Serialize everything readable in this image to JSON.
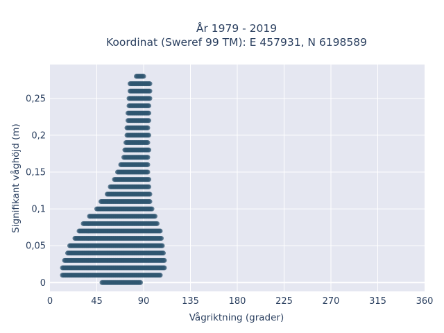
{
  "chart_data": {
    "type": "scatter",
    "title_line1": "År 1979 - 2019",
    "title_line2": "Koordinat (Sweref 99 TM): E 457931, N 6198589",
    "xlabel": "Vågriktning (grader)",
    "ylabel": "Signifikant våghöjd (m)",
    "xlim": [
      0,
      360
    ],
    "ylim": [
      -0.012,
      0.296
    ],
    "grid": true,
    "x_ticks": [
      0,
      45,
      90,
      135,
      180,
      225,
      270,
      315,
      360
    ],
    "x_tick_labels": [
      "0",
      "45",
      "90",
      "135",
      "180",
      "225",
      "270",
      "315",
      "360"
    ],
    "y_ticks": [
      0,
      0.05,
      0.1,
      0.15,
      0.2,
      0.25
    ],
    "y_tick_labels": [
      "0",
      "0,05",
      "0,1",
      "0,15",
      "0,2",
      "0,25"
    ],
    "marker_color": "#2f5670",
    "plot_bg": "#e5e7f1",
    "bands": [
      {
        "y": 0.0,
        "x_min": 50,
        "x_max": 87
      },
      {
        "y": 0.01,
        "x_min": 12,
        "x_max": 106
      },
      {
        "y": 0.02,
        "x_min": 12,
        "x_max": 110
      },
      {
        "y": 0.03,
        "x_min": 14,
        "x_max": 110
      },
      {
        "y": 0.04,
        "x_min": 17,
        "x_max": 109
      },
      {
        "y": 0.05,
        "x_min": 19,
        "x_max": 108
      },
      {
        "y": 0.06,
        "x_min": 24,
        "x_max": 107
      },
      {
        "y": 0.07,
        "x_min": 28,
        "x_max": 106
      },
      {
        "y": 0.08,
        "x_min": 32,
        "x_max": 103
      },
      {
        "y": 0.09,
        "x_min": 38,
        "x_max": 101
      },
      {
        "y": 0.1,
        "x_min": 45,
        "x_max": 98
      },
      {
        "y": 0.11,
        "x_min": 49,
        "x_max": 96
      },
      {
        "y": 0.12,
        "x_min": 55,
        "x_max": 96
      },
      {
        "y": 0.13,
        "x_min": 58,
        "x_max": 95
      },
      {
        "y": 0.14,
        "x_min": 62,
        "x_max": 95
      },
      {
        "y": 0.15,
        "x_min": 65,
        "x_max": 94
      },
      {
        "y": 0.16,
        "x_min": 68,
        "x_max": 94
      },
      {
        "y": 0.17,
        "x_min": 71,
        "x_max": 94
      },
      {
        "y": 0.18,
        "x_min": 72,
        "x_max": 95
      },
      {
        "y": 0.19,
        "x_min": 73,
        "x_max": 94
      },
      {
        "y": 0.2,
        "x_min": 74,
        "x_max": 95
      },
      {
        "y": 0.21,
        "x_min": 74,
        "x_max": 94
      },
      {
        "y": 0.22,
        "x_min": 75,
        "x_max": 95
      },
      {
        "y": 0.23,
        "x_min": 75,
        "x_max": 95
      },
      {
        "y": 0.24,
        "x_min": 76,
        "x_max": 95
      },
      {
        "y": 0.25,
        "x_min": 76,
        "x_max": 96
      },
      {
        "y": 0.26,
        "x_min": 77,
        "x_max": 96
      },
      {
        "y": 0.27,
        "x_min": 77,
        "x_max": 96
      },
      {
        "y": 0.28,
        "x_min": 83,
        "x_max": 90
      }
    ]
  }
}
